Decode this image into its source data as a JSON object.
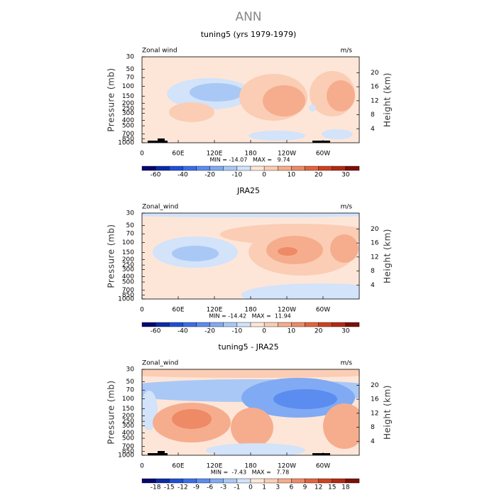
{
  "title": "ANN",
  "axes": {
    "y_label": "Pressure (mb)",
    "y2_label": "Height (km)",
    "pressure_ticks": [
      30,
      50,
      70,
      100,
      150,
      200,
      250,
      300,
      400,
      500,
      700,
      850,
      1000
    ],
    "height_ticks": [
      4,
      8,
      12,
      16,
      20
    ],
    "lon_ticks": [
      "0",
      "60E",
      "120E",
      "180",
      "120W",
      "60W"
    ],
    "log_scale": true
  },
  "panels": [
    {
      "title": "tuning5 (yrs 1979-1979)",
      "left_label": "Zonal wind",
      "right_label": "m/s",
      "stats": "MIN = -14.07   MAX =   9.74",
      "colorbar": {
        "labels": [
          null,
          -60,
          null,
          -40,
          null,
          -20,
          null,
          -10,
          null,
          0,
          null,
          10,
          null,
          20,
          null,
          30,
          null
        ],
        "colors": [
          "#06086e",
          "#0d2aa6",
          "#1f4fd6",
          "#3a6ee8",
          "#5b8cef",
          "#80aaf3",
          "#a9c8f6",
          "#d2e3fa",
          "#fde6d8",
          "#fbcdb5",
          "#f6ad8d",
          "#ee8a66",
          "#e2643f",
          "#cf4120",
          "#b22a14",
          "#7d1008"
        ]
      }
    },
    {
      "title": "JRA25",
      "left_label": "Zonal_wind",
      "right_label": "m/s",
      "stats": "MIN = -14.42   MAX =  11.94",
      "colorbar": {
        "labels": [
          null,
          -60,
          null,
          -40,
          null,
          -20,
          null,
          -10,
          null,
          0,
          null,
          10,
          null,
          20,
          null,
          30,
          null
        ],
        "colors": [
          "#06086e",
          "#0d2aa6",
          "#1f4fd6",
          "#3a6ee8",
          "#5b8cef",
          "#80aaf3",
          "#a9c8f6",
          "#d2e3fa",
          "#fde6d8",
          "#fbcdb5",
          "#f6ad8d",
          "#ee8a66",
          "#e2643f",
          "#cf4120",
          "#b22a14",
          "#7d1008"
        ]
      }
    },
    {
      "title": "tuning5 - JRA25",
      "left_label": "Zonal_wind",
      "right_label": "m/s",
      "stats": "MIN =  -7.43   MAX =   7.78",
      "colorbar": {
        "labels": [
          null,
          -18,
          -15,
          -12,
          -9,
          -6,
          -3,
          -1,
          0,
          1,
          3,
          6,
          9,
          12,
          15,
          18,
          null
        ],
        "colors": [
          "#06086e",
          "#0d2aa6",
          "#1f4fd6",
          "#3a6ee8",
          "#5b8cef",
          "#80aaf3",
          "#a9c8f6",
          "#d2e3fa",
          "#fde6d8",
          "#fbcdb5",
          "#f6ad8d",
          "#ee8a66",
          "#e2643f",
          "#cf4120",
          "#b22a14",
          "#7d1008"
        ]
      }
    }
  ]
}
